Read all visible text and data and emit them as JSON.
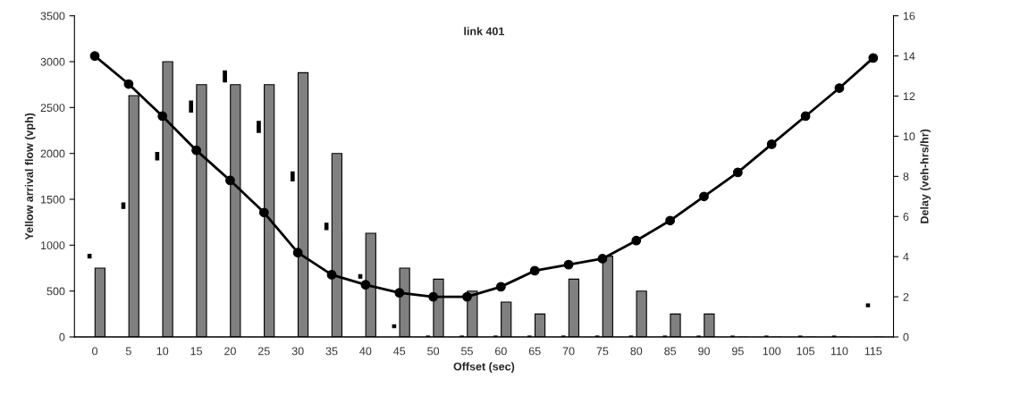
{
  "chart_data": {
    "type": "bar",
    "title": "link 401",
    "xlabel": "Offset (sec)",
    "ylabel": "Yellow arrival flow (vph)",
    "y2label": "Delay (veh-hrs/hr)",
    "categories": [
      "0",
      "5",
      "10",
      "15",
      "20",
      "25",
      "30",
      "35",
      "40",
      "45",
      "50",
      "55",
      "60",
      "65",
      "70",
      "75",
      "80",
      "85",
      "90",
      "95",
      "100",
      "105",
      "110",
      "115"
    ],
    "series": [
      {
        "type": "bar",
        "color": "#000000",
        "base": [
          860,
          1400,
          1930,
          2450,
          2780,
          2230,
          1700,
          1170,
          640,
          100,
          0,
          0,
          0,
          0,
          0,
          0,
          0,
          0,
          0,
          0,
          0,
          0,
          0,
          330
        ],
        "values": [
          40,
          60,
          80,
          120,
          120,
          120,
          100,
          70,
          40,
          30,
          10,
          10,
          10,
          10,
          10,
          10,
          10,
          10,
          10,
          10,
          10,
          10,
          10,
          30
        ]
      },
      {
        "color": "#808080",
        "values": [
          750,
          2630,
          3000,
          2750,
          2750,
          2750,
          2880,
          2000,
          1130,
          750,
          630,
          500,
          380,
          250,
          630,
          880,
          500,
          250,
          250,
          0,
          0,
          0,
          0,
          0
        ]
      },
      {
        "type": "line",
        "axis": "y2",
        "color": "#000000",
        "marker": "circle",
        "line_style": "solid",
        "values": [
          14.0,
          12.6,
          11.0,
          9.3,
          7.8,
          6.2,
          4.2,
          3.1,
          2.6,
          2.2,
          2.0,
          2.0,
          2.5,
          3.3,
          3.6,
          3.9,
          4.8,
          5.8,
          7.0,
          8.2,
          9.6,
          11.0,
          12.4,
          13.9
        ]
      }
    ],
    "ylim": [
      0,
      3500
    ],
    "yticks": [
      0,
      500,
      1000,
      1500,
      2000,
      2500,
      3000,
      3500
    ],
    "y2lim": [
      0,
      16
    ],
    "y2ticks": [
      0,
      2,
      4,
      6,
      8,
      10,
      12,
      14,
      16
    ],
    "grid": false,
    "legend": false
  }
}
